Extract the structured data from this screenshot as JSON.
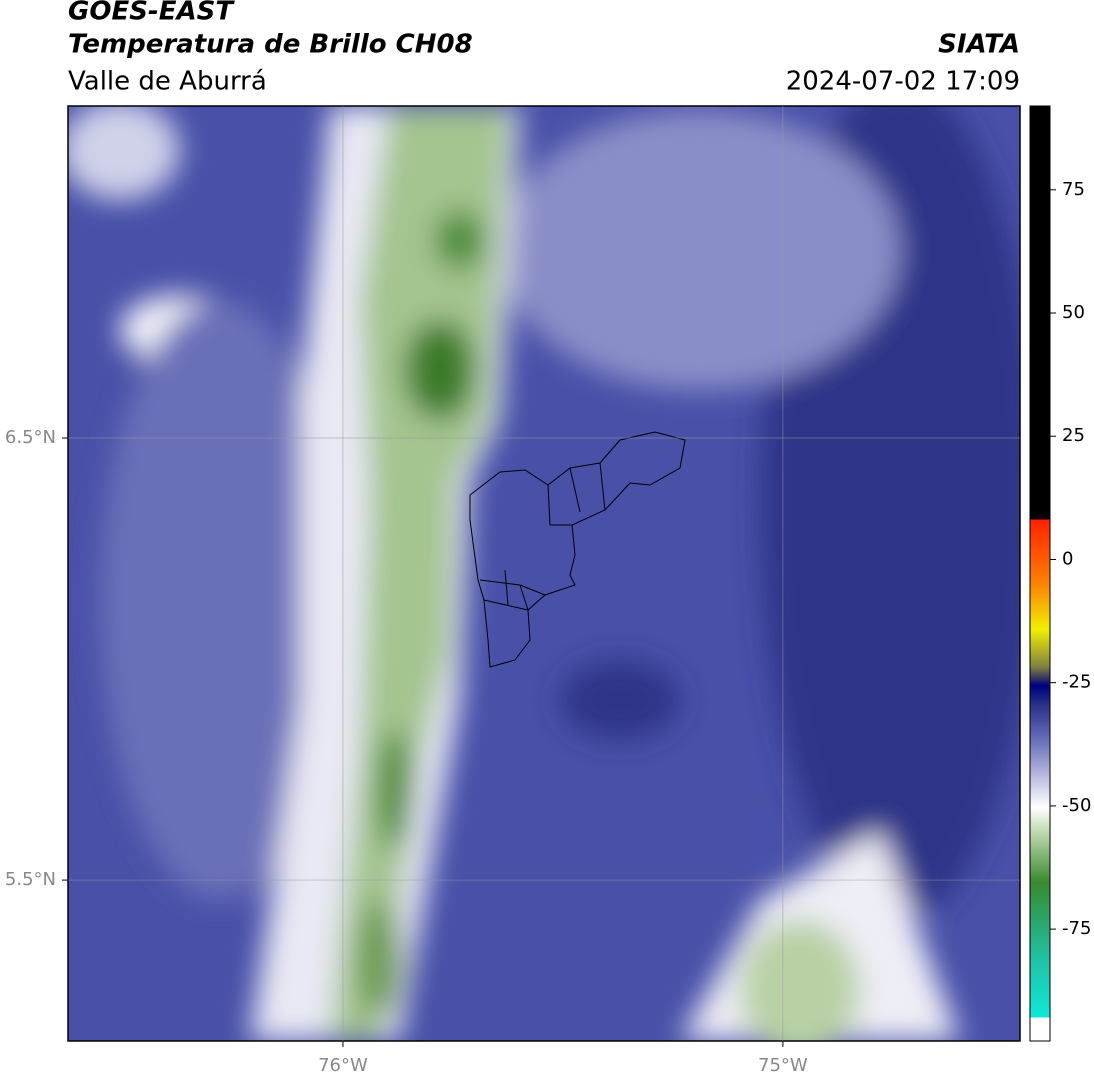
{
  "header": {
    "title": "GOES-EAST",
    "subtitle": "Temperatura de Brillo CH08",
    "region": "Valle de Aburrá",
    "source": "SIATA",
    "datetime": "2024-07-02 17:09"
  },
  "map": {
    "lonlim": [
      -76.625,
      -74.461
    ],
    "latlim": [
      5.136,
      7.251
    ],
    "lon_ticks": [
      {
        "value": -76,
        "label": "76°W"
      },
      {
        "value": -75,
        "label": "75°W"
      }
    ],
    "lat_ticks": [
      {
        "value": 6.5,
        "label": "6.5°N"
      },
      {
        "value": 5.5,
        "label": "5.5°N"
      }
    ],
    "colorbar": {
      "lim": [
        -97.7,
        92
      ],
      "ticks": [
        75,
        50,
        25,
        0,
        -25,
        -50,
        -75
      ]
    }
  }
}
